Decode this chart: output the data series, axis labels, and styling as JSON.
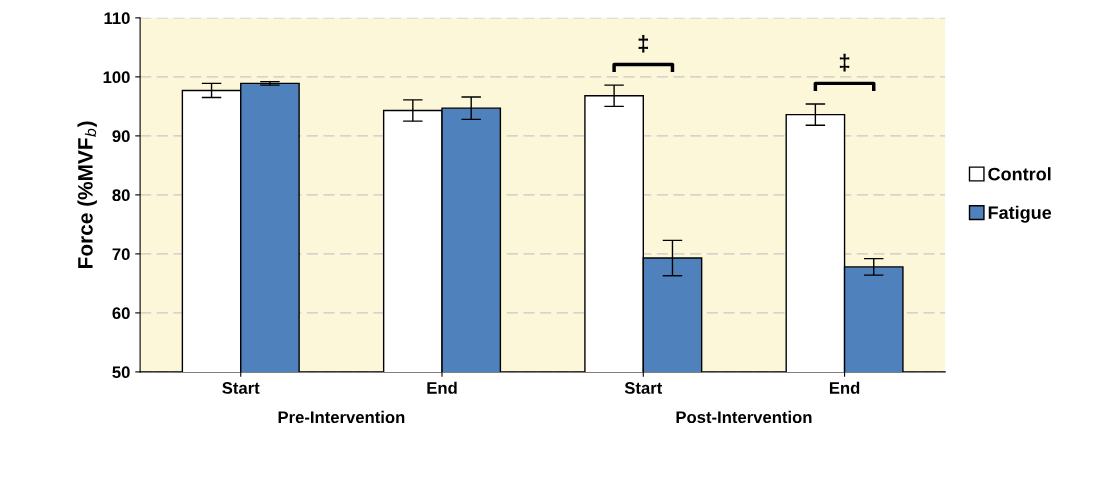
{
  "chart_data": {
    "type": "bar",
    "ylabel": "Force (%MVF$_{b}$)",
    "categories": [
      "Start",
      "End",
      "Start",
      "End"
    ],
    "series": [
      {
        "name": "Control",
        "color": "#ffffff",
        "values": [
          97.7,
          94.3,
          96.8,
          93.6
        ],
        "errors": [
          1.2,
          1.8,
          1.8,
          1.8
        ]
      },
      {
        "name": "Fatigue",
        "color": "#4f81bd",
        "values": [
          98.9,
          94.7,
          69.3,
          67.8
        ],
        "errors": [
          0.3,
          1.9,
          3.0,
          1.4
        ]
      }
    ],
    "ylim": [
      50,
      110
    ],
    "yticks": [
      50,
      60,
      70,
      80,
      90,
      100,
      110
    ],
    "grid": "y",
    "legend": "right",
    "annotations": [
      "Pre-Intervention",
      "Post-Intervention",
      "‡",
      "‡"
    ]
  }
}
